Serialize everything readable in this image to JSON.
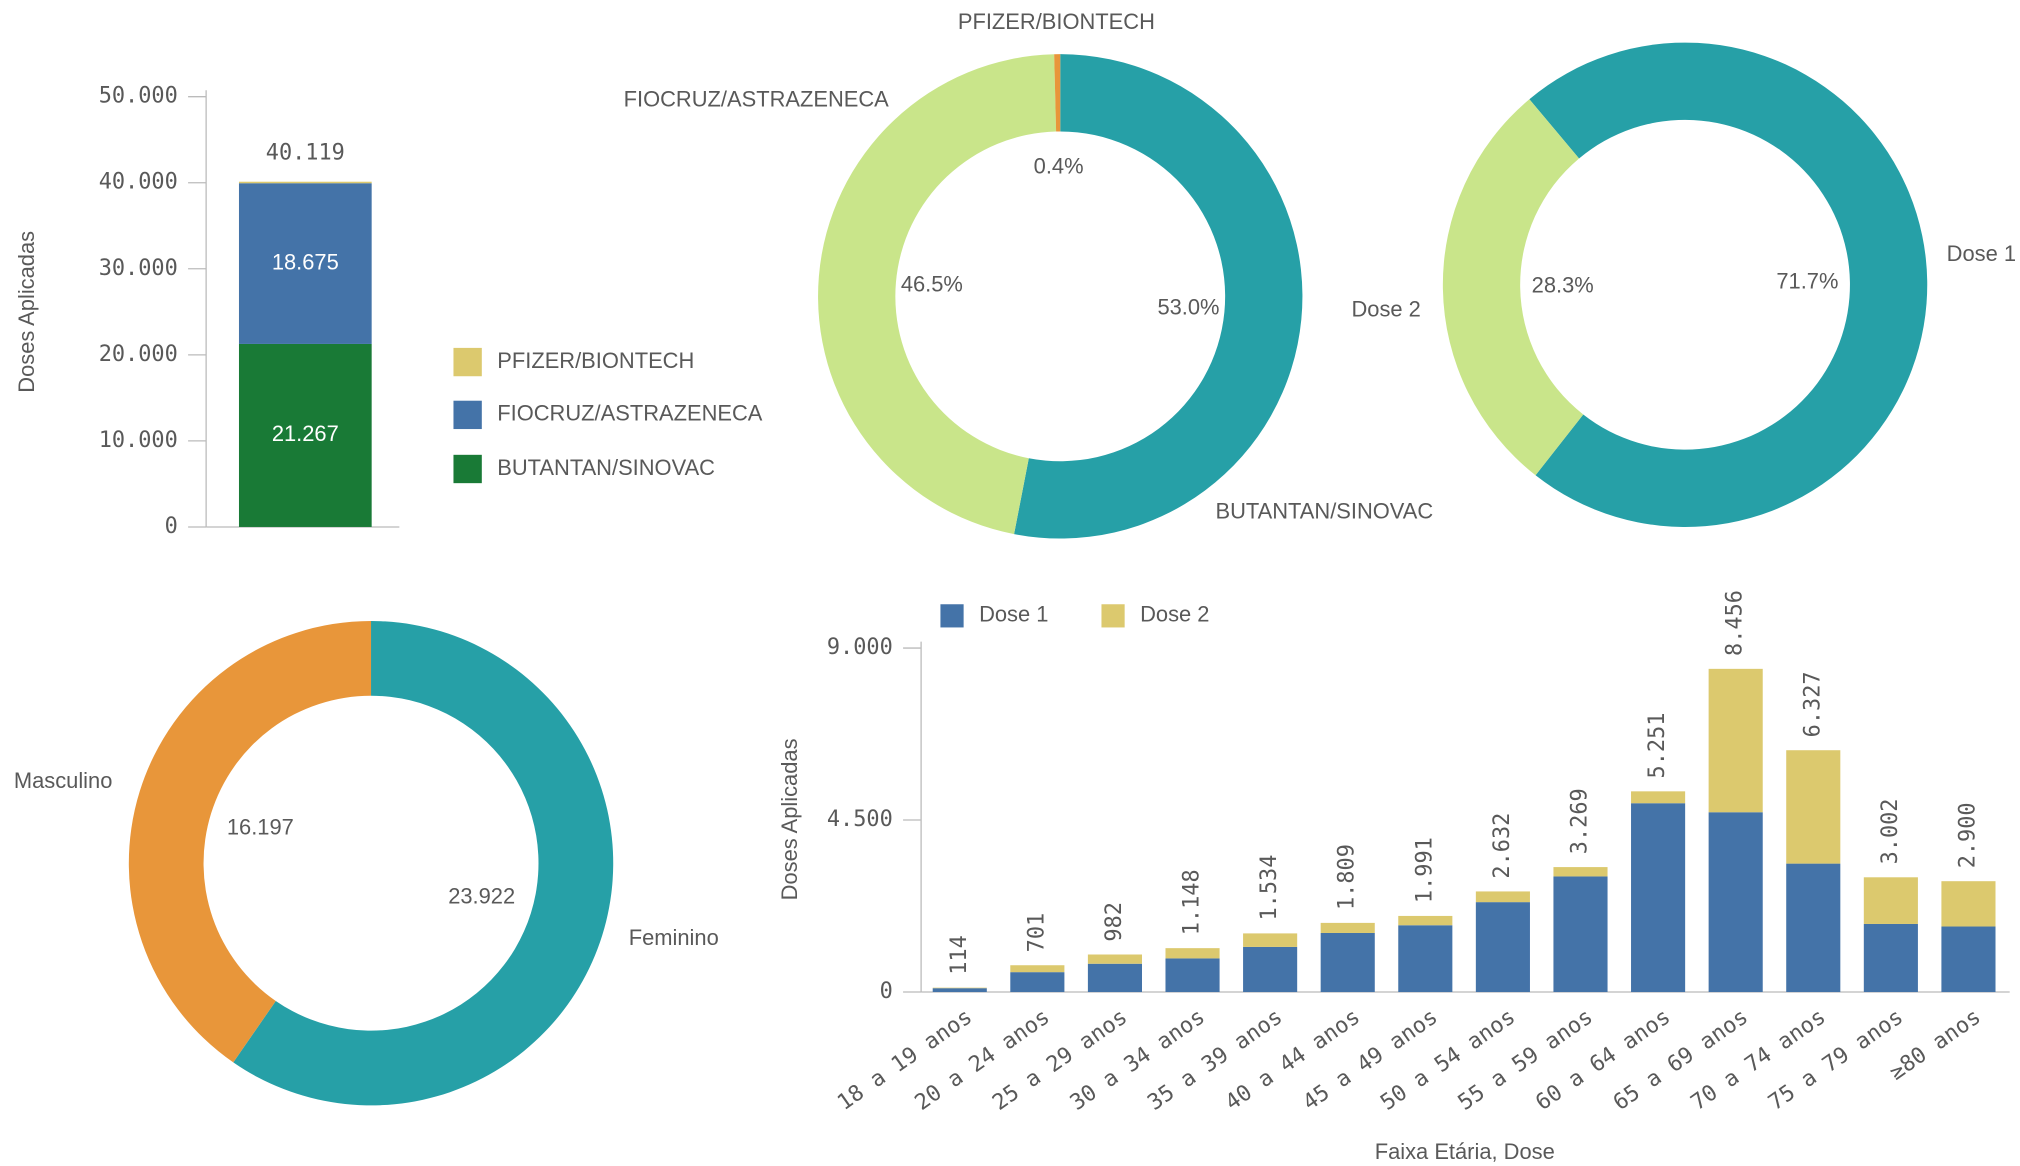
{
  "chart_data": [
    {
      "type": "bar",
      "ylabel": "Doses Aplicadas",
      "categories": [
        null
      ],
      "series": [
        {
          "name": "BUTANTAN/SINOVAC",
          "color": "#197a36",
          "values": [
            21267
          ],
          "value_labels": [
            "21.267"
          ]
        },
        {
          "name": "FIOCRUZ/ASTRAZENECA",
          "color": "#4473a8",
          "values": [
            18675
          ],
          "value_labels": [
            "18.675"
          ]
        },
        {
          "name": "PFIZER/BIONTECH",
          "color": "#dcc96e",
          "values": [
            177
          ]
        }
      ],
      "totals": [
        40119
      ],
      "total_labels": [
        "40.119"
      ],
      "ylim": [
        0,
        50000
      ],
      "yticks": [
        0,
        {
          "value": 10000,
          "label": "10.000"
        },
        {
          "value": 20000,
          "label": "20.000"
        },
        {
          "value": 30000,
          "label": "30.000"
        },
        {
          "value": 40000,
          "label": "40.000"
        },
        {
          "value": 50000,
          "label": "50.000"
        }
      ]
    },
    {
      "type": "pie",
      "categories": [
        "BUTANTAN/SINOVAC",
        "FIOCRUZ/ASTRAZENECA",
        "PFIZER/BIONTECH"
      ],
      "values": [
        53.0,
        46.5,
        0.4
      ],
      "value_labels": [
        "53.0%",
        "46.5%",
        "0.4%"
      ],
      "colors": [
        "#26a0a7",
        "#c9e58a",
        "#e8963a"
      ]
    },
    {
      "type": "pie",
      "categories": [
        "Dose 1",
        "Dose 2"
      ],
      "values": [
        71.7,
        28.3
      ],
      "value_labels": [
        "71.7%",
        "28.3%"
      ],
      "colors": [
        "#26a0a7",
        "#c9e58a"
      ]
    },
    {
      "type": "pie",
      "categories": [
        "Feminino",
        "Masculino"
      ],
      "values": [
        23922,
        16197
      ],
      "value_labels": [
        "23.922",
        "16.197"
      ],
      "colors": [
        "#26a0a7",
        "#e8963a"
      ]
    },
    {
      "type": "bar",
      "xlabel": "Faixa Etária, Dose",
      "ylabel": "Doses Aplicadas",
      "categories": [
        "18 a 19 anos",
        "20 a 24 anos",
        "25 a 29 anos",
        "30 a 34 anos",
        "35 a 39 anos",
        "40 a 44 anos",
        "45 a 49 anos",
        "50 a 54 anos",
        "55 a 59 anos",
        "60 a 64 anos",
        "65 a 69 anos",
        "70 a 74 anos",
        "75 a 79 anos",
        "≥80 anos"
      ],
      "series": [
        {
          "name": "Dose 1",
          "color": "#4473a8",
          "values": [
            100,
            520,
            740,
            880,
            1180,
            1545,
            1747,
            2352,
            3024,
            4940,
            4704,
            3360,
            1781,
            1714
          ]
        },
        {
          "name": "Dose 2",
          "color": "#dcc96e",
          "values": [
            14,
            181,
            242,
            268,
            354,
            264,
            244,
            280,
            245,
            311,
            3752,
            2967,
            1221,
            1186
          ]
        }
      ],
      "totals": [
        114,
        701,
        982,
        1148,
        1534,
        1809,
        1991,
        2632,
        3269,
        5251,
        8456,
        6327,
        3002,
        2900
      ],
      "total_labels": [
        "114",
        "701",
        "982",
        "1.148",
        "1.534",
        "1.809",
        "1.991",
        "2.632",
        "3.269",
        "5.251",
        "8.456",
        "6.327",
        "3.002",
        "2.900"
      ],
      "ylim": [
        0,
        9000
      ],
      "yticks": [
        0,
        {
          "value": 4500,
          "label": "4.500"
        },
        {
          "value": 9000,
          "label": "9.000"
        }
      ]
    }
  ]
}
